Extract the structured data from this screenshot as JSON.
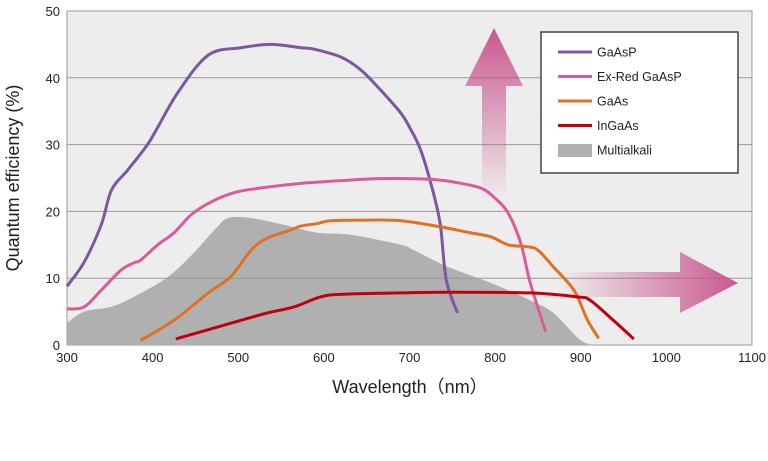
{
  "chart_data": {
    "type": "line",
    "title": "",
    "xlabel": "Wavelength（nm）",
    "ylabel": "Quantum efficiency (%)",
    "xlim": [
      300,
      1100
    ],
    "ylim": [
      0,
      50
    ],
    "xticks": [
      300,
      400,
      500,
      600,
      700,
      800,
      900,
      1000,
      1100
    ],
    "yticks": [
      0,
      10,
      20,
      30,
      40,
      50
    ],
    "grid": "horizontal",
    "legend_position": "top-right",
    "background": "#ededed",
    "series": [
      {
        "name": "GaAsP",
        "kind": "line",
        "color": "#7b58a0",
        "x": [
          300,
          320,
          340,
          352,
          371,
          394,
          406,
          430,
          465,
          503,
          538,
          573,
          588,
          620,
          643,
          666,
          690,
          700,
          713,
          727,
          736,
          743,
          756
        ],
        "y": [
          8.8,
          12.4,
          18,
          23.2,
          26.2,
          30,
          32.6,
          37.9,
          43.4,
          44.5,
          45,
          44.5,
          44.3,
          43.1,
          41.2,
          38.2,
          34.7,
          32.6,
          29.2,
          23.2,
          18,
          9.7,
          4.8
        ]
      },
      {
        "name": "Ex-Red GaAsP",
        "kind": "line",
        "color": "#d95c98",
        "x": [
          300,
          320,
          340,
          363,
          378,
          386,
          406,
          425,
          445,
          468,
          495,
          526,
          573,
          596,
          620,
          666,
          725,
          756,
          783,
          798,
          815,
          830,
          841,
          859
        ],
        "y": [
          5.4,
          5.7,
          8.2,
          11.2,
          12.3,
          12.7,
          15,
          16.8,
          19.5,
          21.4,
          22.8,
          23.5,
          24.2,
          24.4,
          24.6,
          24.9,
          24.8,
          24.3,
          23.5,
          22.2,
          19.8,
          15.2,
          9.3,
          2
        ]
      },
      {
        "name": "GaAs",
        "kind": "line",
        "color": "#e07024",
        "x": [
          386,
          425,
          465,
          491,
          515,
          534,
          561,
          573,
          593,
          608,
          651,
          690,
          736,
          771,
          795,
          815,
          838,
          850,
          868,
          892,
          908,
          921
        ],
        "y": [
          0.7,
          3.7,
          7.8,
          10.2,
          14.2,
          16,
          17.2,
          17.8,
          18.2,
          18.6,
          18.7,
          18.6,
          17.7,
          16.8,
          16.2,
          15,
          14.7,
          14.2,
          11.7,
          8.2,
          3.7,
          1
        ]
      },
      {
        "name": "InGaAs",
        "kind": "line",
        "color": "#c00010",
        "x": [
          427,
          495,
          534,
          565,
          596,
          623,
          690,
          744,
          841,
          896,
          911,
          938,
          962
        ],
        "y": [
          0.9,
          3.4,
          4.8,
          5.7,
          7.2,
          7.6,
          7.8,
          7.9,
          7.8,
          7.2,
          6.7,
          3.7,
          0.9
        ]
      },
      {
        "name": "Multialkali",
        "kind": "area",
        "color": "#b0b0b0",
        "x": [
          300,
          320,
          351,
          378,
          418,
          448,
          472,
          488,
          515,
          553,
          593,
          631,
          690,
          705,
          745,
          795,
          841,
          868,
          900,
          920
        ],
        "y": [
          3.3,
          5,
          5.7,
          7.2,
          10.2,
          13.8,
          17.2,
          19,
          19,
          18,
          16.8,
          16.5,
          15,
          14.2,
          11.7,
          9.3,
          6.7,
          4.8,
          0.7,
          0
        ]
      }
    ],
    "annotations": [
      {
        "type": "arrow",
        "direction": "up",
        "color": "#c8508a"
      },
      {
        "type": "arrow",
        "direction": "right",
        "color": "#c8508a"
      }
    ]
  }
}
